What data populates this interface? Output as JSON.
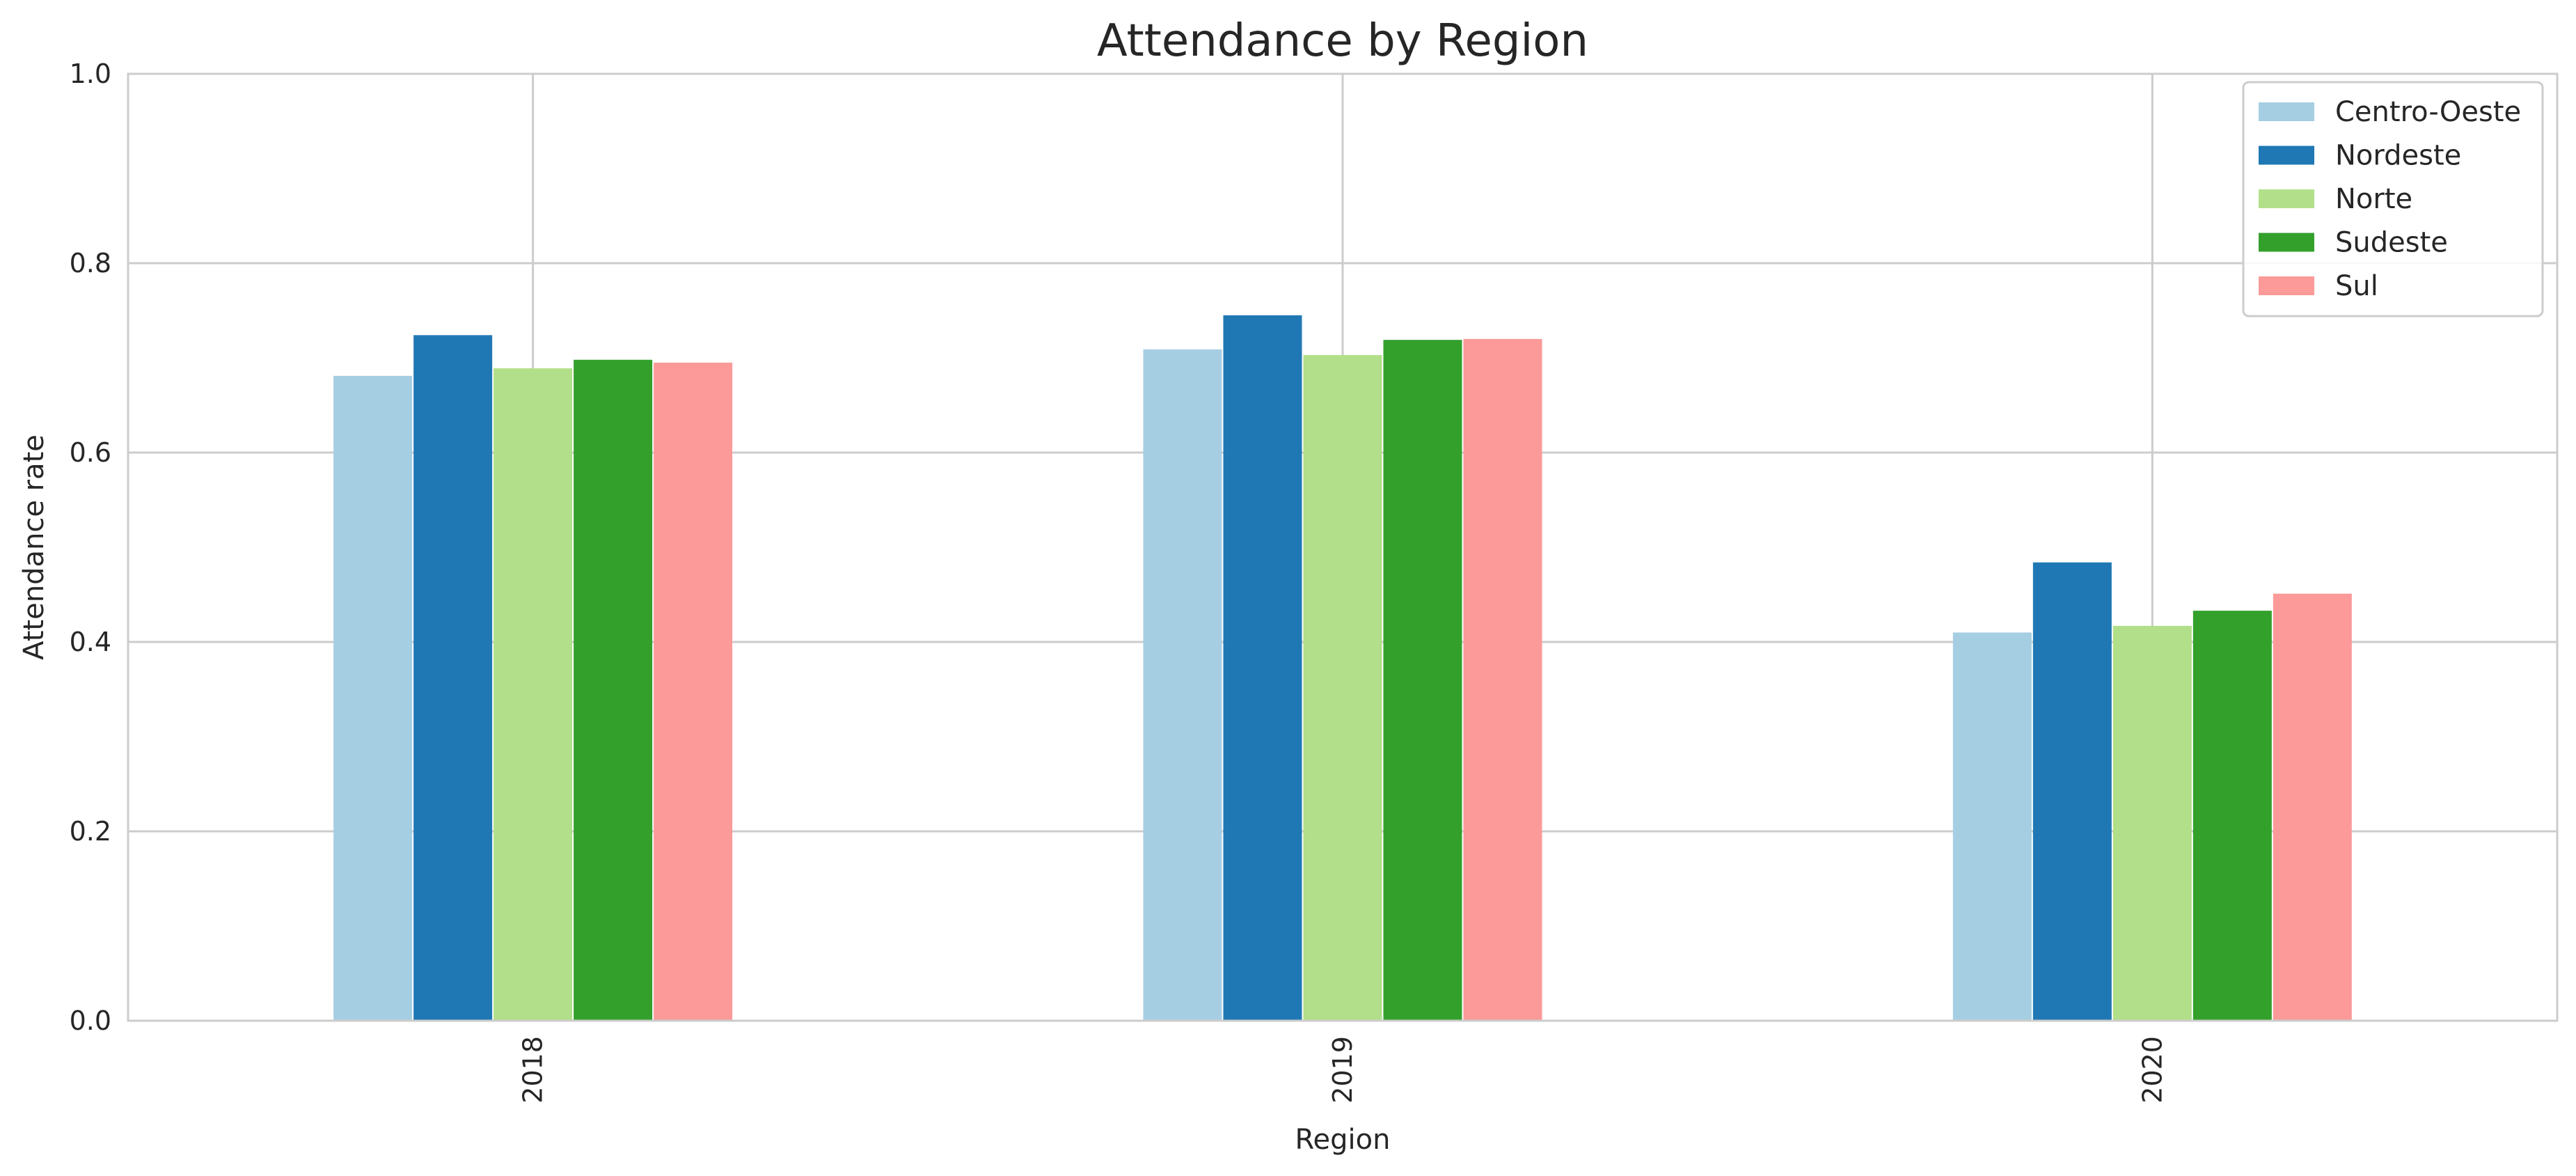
{
  "chart_data": {
    "type": "bar",
    "title": "Attendance by Region",
    "xlabel": "Region",
    "ylabel": "Attendance rate",
    "categories": [
      "2018",
      "2019",
      "2020"
    ],
    "ylim": [
      0,
      1.0
    ],
    "yticks": [
      0.0,
      0.2,
      0.4,
      0.6,
      0.8,
      1.0
    ],
    "ytick_labels": [
      "0.0",
      "0.2",
      "0.4",
      "0.6",
      "0.8",
      "1.0"
    ],
    "grid": true,
    "legend_position": "top-right",
    "xtick_rotation": "vertical",
    "series": [
      {
        "name": "Centro-Oeste",
        "color": "#a6cee3",
        "values": [
          0.681,
          0.709,
          0.41
        ]
      },
      {
        "name": "Nordeste",
        "color": "#1f78b4",
        "values": [
          0.724,
          0.745,
          0.484
        ]
      },
      {
        "name": "Norte",
        "color": "#b2df8a",
        "values": [
          0.689,
          0.703,
          0.417
        ]
      },
      {
        "name": "Sudeste",
        "color": "#33a02c",
        "values": [
          0.698,
          0.719,
          0.433
        ]
      },
      {
        "name": "Sul",
        "color": "#fb9a99",
        "values": [
          0.695,
          0.72,
          0.451
        ]
      }
    ]
  }
}
